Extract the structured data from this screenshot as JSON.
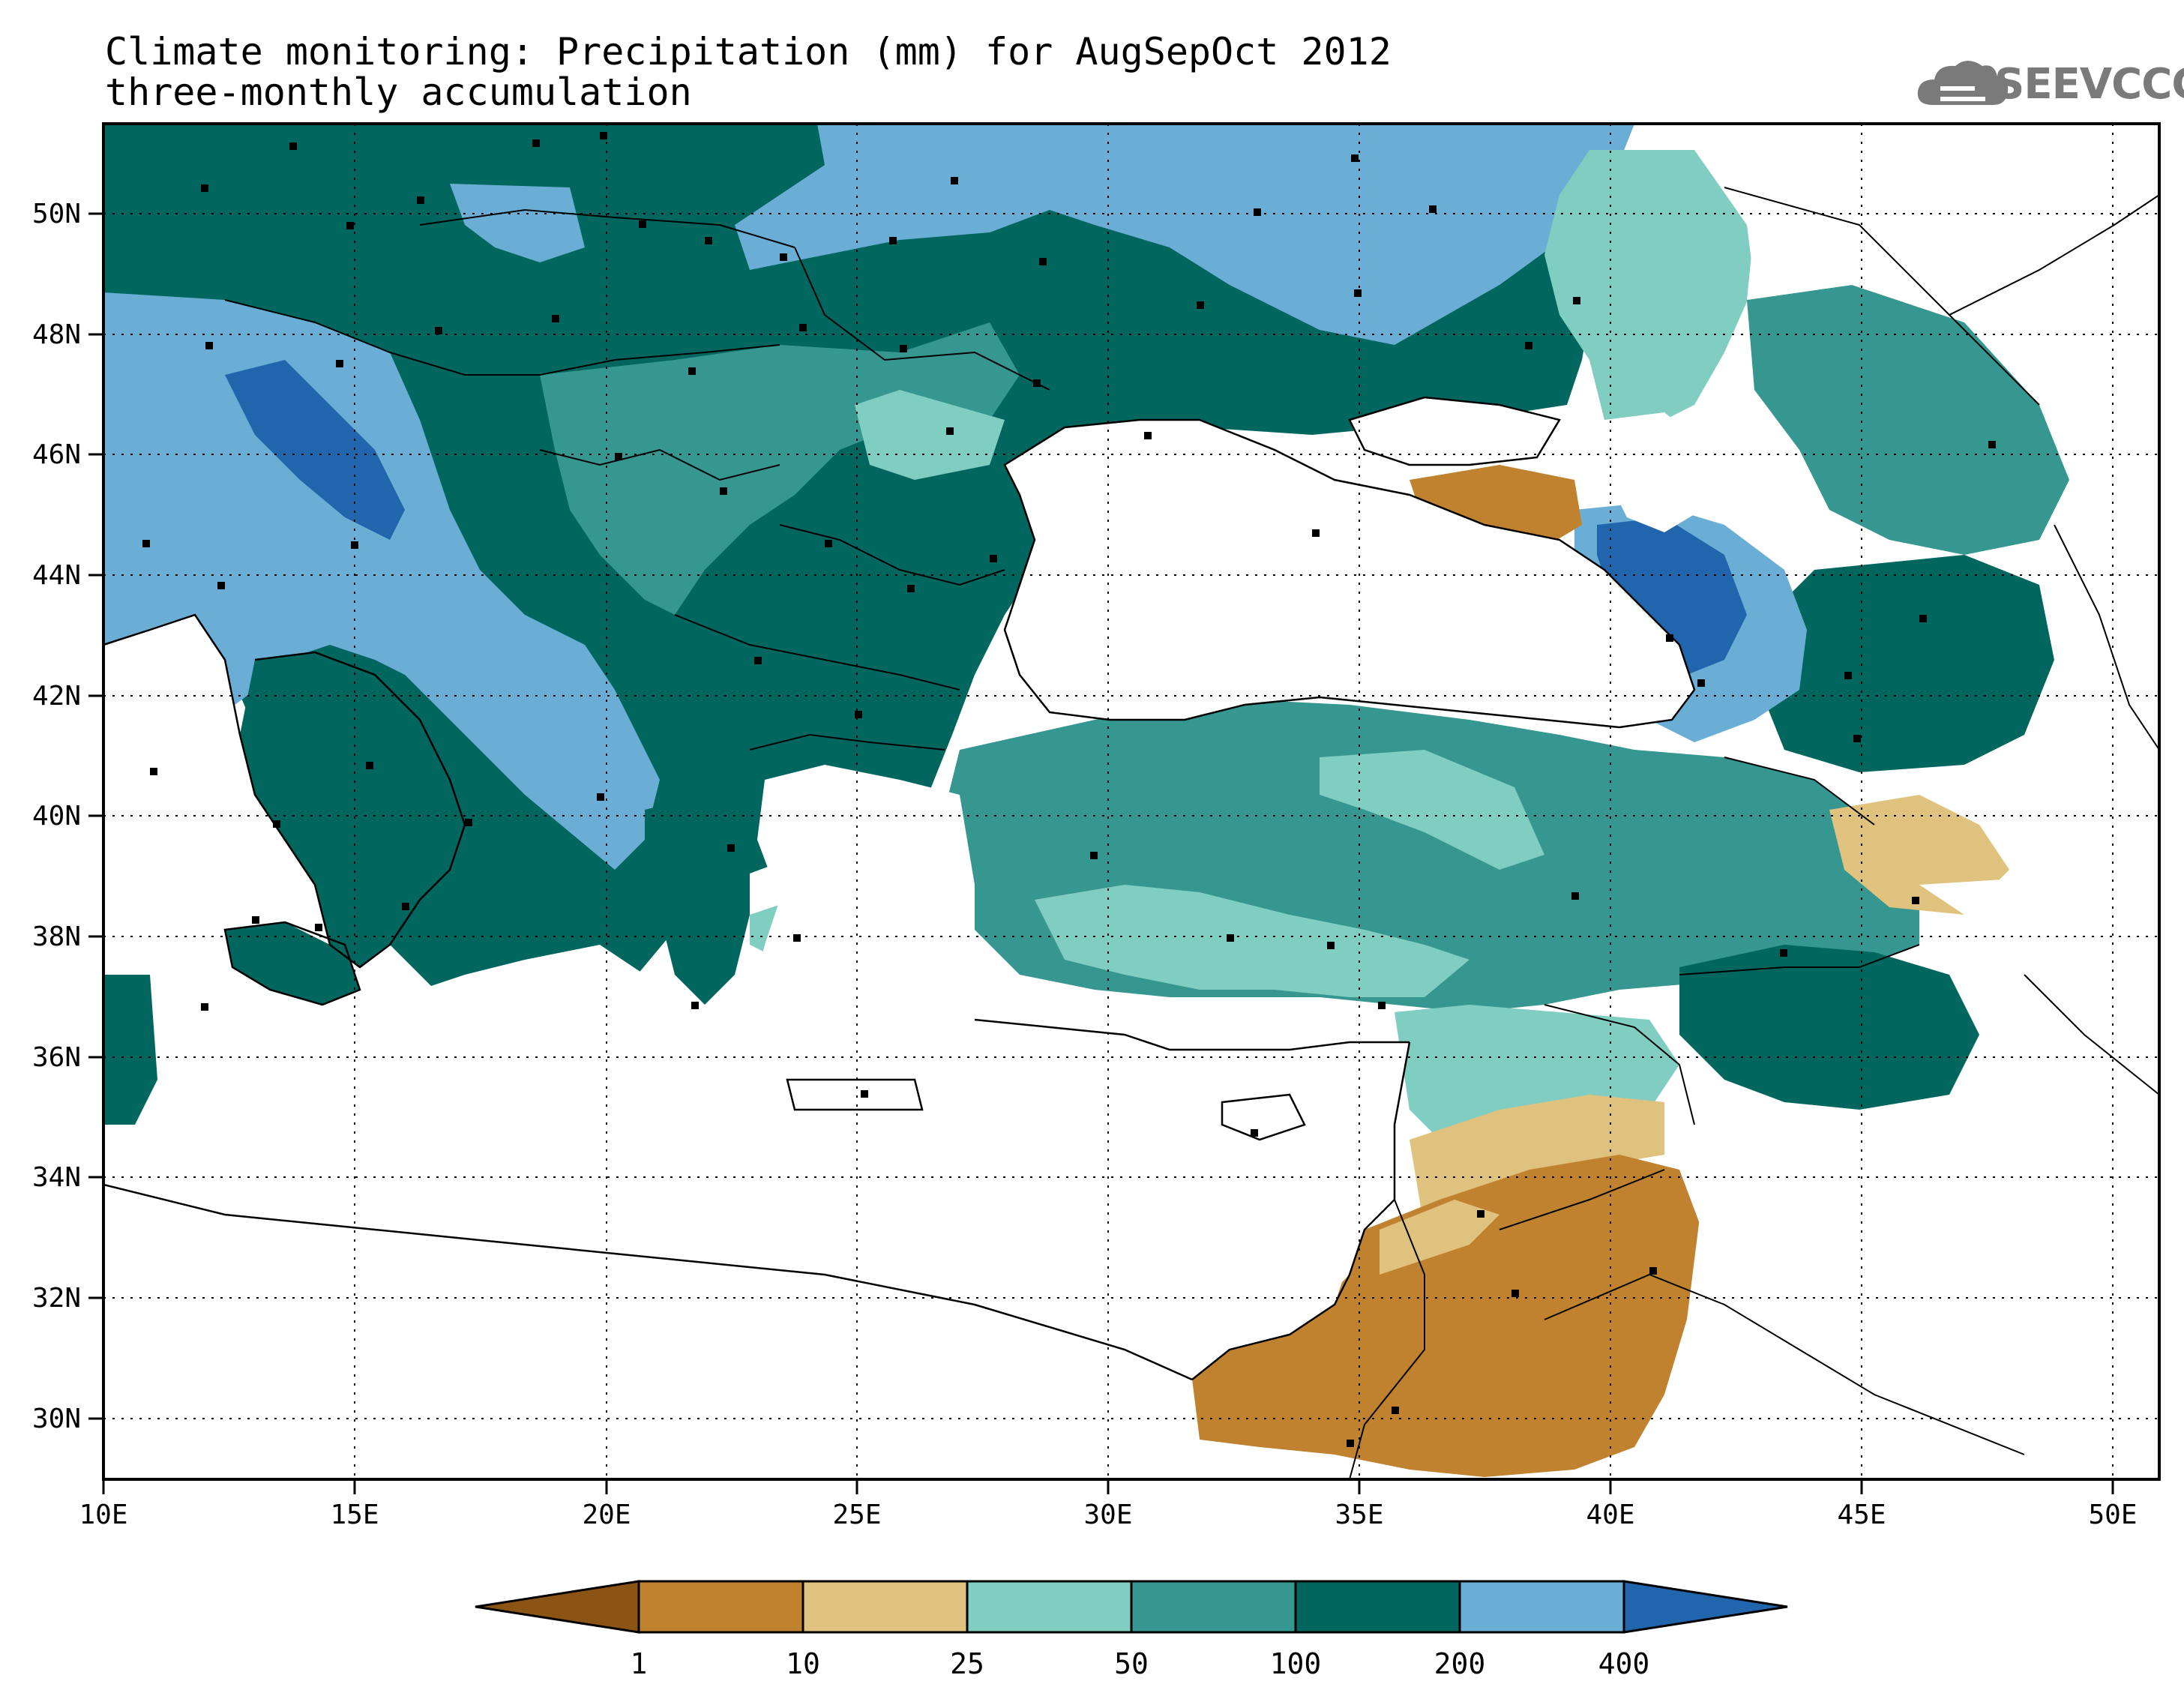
{
  "title": {
    "line1": "Climate monitoring: Precipitation (mm) for AugSepOct 2012",
    "line2": "three-monthly accumulation"
  },
  "logo": {
    "text": "SEEVCCC",
    "icon": "cloud-icon",
    "color": "#7a7a7a"
  },
  "map": {
    "lon_range": [
      10,
      51
    ],
    "lat_range": [
      29,
      51.5
    ],
    "x_ticks": [
      "10E",
      "15E",
      "20E",
      "25E",
      "30E",
      "35E",
      "40E",
      "45E",
      "50E"
    ],
    "y_ticks": [
      "30N",
      "32N",
      "34N",
      "36N",
      "38N",
      "40N",
      "42N",
      "44N",
      "46N",
      "48N",
      "50N"
    ],
    "grid": "dotted"
  },
  "colorbar": {
    "levels": [
      "1",
      "10",
      "25",
      "50",
      "100",
      "200",
      "400"
    ],
    "colors": [
      "#8c5414",
      "#c0822e",
      "#dfc27e",
      "#80cdc1",
      "#35978f",
      "#01665e",
      "#6aaed6",
      "#2166ac"
    ]
  }
}
